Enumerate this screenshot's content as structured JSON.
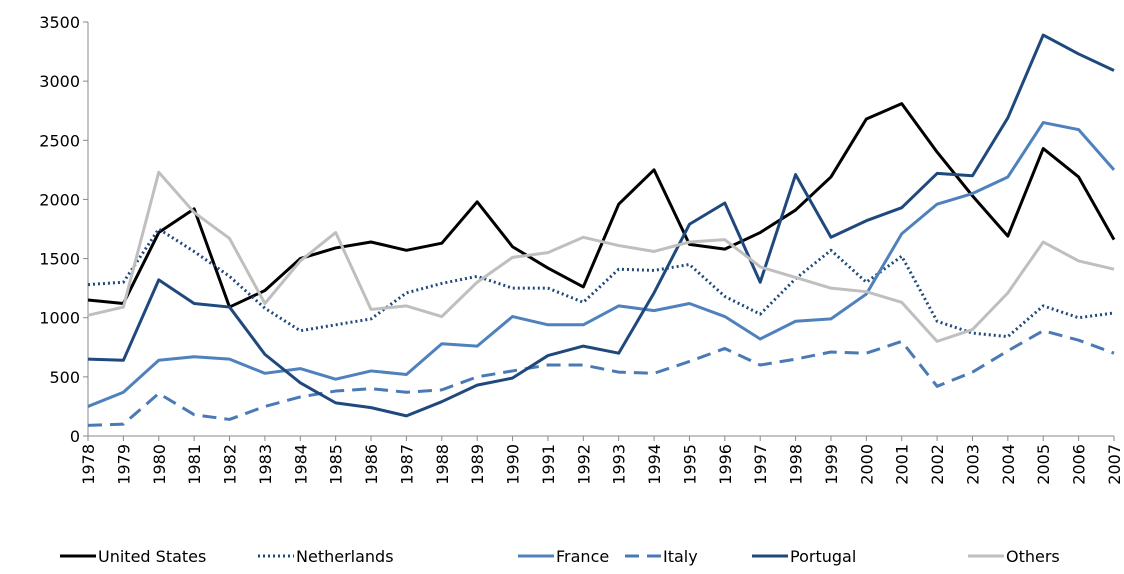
{
  "chart_data": {
    "type": "line",
    "categories": [
      "1978",
      "1979",
      "1980",
      "1981",
      "1982",
      "1983",
      "1984",
      "1985",
      "1986",
      "1987",
      "1988",
      "1989",
      "1990",
      "1991",
      "1992",
      "1993",
      "1994",
      "1995",
      "1996",
      "1997",
      "1998",
      "1999",
      "2000",
      "2001",
      "2002",
      "2003",
      "2004",
      "2005",
      "2006",
      "2007"
    ],
    "ylim": [
      0,
      3500
    ],
    "yticks": [
      0,
      500,
      1000,
      1500,
      2000,
      2500,
      3000,
      3500
    ],
    "grid": false,
    "legend": "bottom",
    "series": [
      {
        "name": "United States",
        "color": "#000000",
        "dash": "solid",
        "values": [
          1150,
          1120,
          1720,
          1920,
          1090,
          1230,
          1500,
          1590,
          1640,
          1570,
          1630,
          1980,
          1600,
          1420,
          1260,
          1960,
          2250,
          1620,
          1580,
          1720,
          1910,
          2190,
          2680,
          2810,
          2400,
          2030,
          1690,
          2430,
          2190,
          1660
        ]
      },
      {
        "name": "Netherlands",
        "color": "#1f497d",
        "dash": "dotted",
        "values": [
          1280,
          1300,
          1750,
          1560,
          1350,
          1080,
          890,
          940,
          990,
          1210,
          1290,
          1350,
          1250,
          1250,
          1130,
          1410,
          1400,
          1450,
          1180,
          1030,
          1330,
          1570,
          1300,
          1520,
          970,
          870,
          840,
          1100,
          1000,
          1040
        ]
      },
      {
        "name": "France",
        "color": "#4f81bd",
        "dash": "solid",
        "values": [
          250,
          370,
          640,
          670,
          650,
          530,
          570,
          480,
          550,
          520,
          780,
          760,
          1010,
          940,
          940,
          1100,
          1060,
          1120,
          1010,
          820,
          970,
          990,
          1200,
          1710,
          1960,
          2050,
          2190,
          2650,
          2590,
          2250
        ]
      },
      {
        "name": "Italy",
        "color": "#4a7ab5",
        "dash": "dashed",
        "values": [
          90,
          100,
          360,
          180,
          140,
          250,
          330,
          380,
          400,
          370,
          390,
          500,
          550,
          600,
          600,
          540,
          530,
          630,
          740,
          600,
          650,
          710,
          700,
          800,
          420,
          540,
          720,
          890,
          810,
          700
        ]
      },
      {
        "name": "Portugal",
        "color": "#1f497d",
        "dash": "solid",
        "values": [
          650,
          640,
          1320,
          1120,
          1090,
          690,
          450,
          280,
          240,
          170,
          290,
          430,
          490,
          680,
          760,
          700,
          1210,
          1790,
          1970,
          1300,
          2210,
          1680,
          1820,
          1930,
          2220,
          2200,
          2690,
          3390,
          3230,
          3090
        ]
      },
      {
        "name": "Others",
        "color": "#bfbfbf",
        "dash": "solid",
        "values": [
          1020,
          1090,
          2230,
          1890,
          1670,
          1120,
          1480,
          1720,
          1070,
          1100,
          1010,
          1300,
          1510,
          1550,
          1680,
          1610,
          1560,
          1640,
          1660,
          1430,
          1340,
          1250,
          1220,
          1130,
          800,
          900,
          1210,
          1640,
          1480,
          1410
        ]
      }
    ]
  }
}
